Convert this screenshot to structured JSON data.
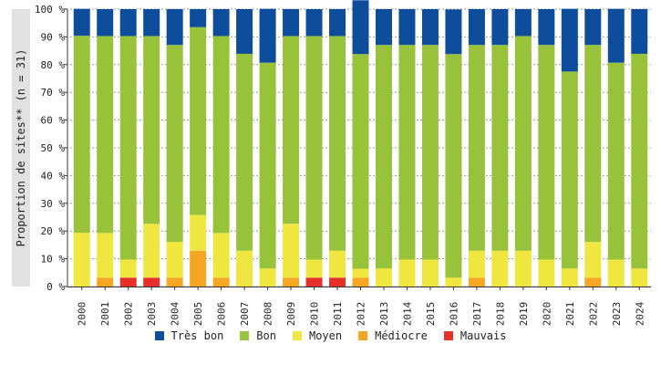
{
  "chart_data": {
    "type": "bar",
    "stacked": true,
    "ylabel": "Proportion de sites** (n = 31)",
    "ylim": [
      0,
      100
    ],
    "yticks": [
      "0 %",
      "10 %",
      "20 %",
      "30 %",
      "40 %",
      "50 %",
      "60 %",
      "70 %",
      "80 %",
      "90 %",
      "100 %"
    ],
    "grid": true,
    "legend_position": "bottom",
    "categories": [
      "2000",
      "2001",
      "2002",
      "2003",
      "2004",
      "2005",
      "2006",
      "2007",
      "2008",
      "2009",
      "2010",
      "2011",
      "2012",
      "2013",
      "2014",
      "2015",
      "2016",
      "2017",
      "2018",
      "2019",
      "2020",
      "2021",
      "2022",
      "2023",
      "2024"
    ],
    "series": [
      {
        "name": "Mauvais",
        "color": "#e8302a",
        "values": [
          0,
          0,
          3.2,
          3.2,
          0,
          0,
          0,
          0,
          0,
          0,
          3.2,
          3.2,
          0,
          0,
          0,
          0,
          0,
          0,
          0,
          0,
          0,
          0,
          0,
          0,
          0
        ]
      },
      {
        "name": "Médiocre",
        "color": "#f5a623",
        "values": [
          0,
          3.2,
          0,
          0,
          3.2,
          12.9,
          3.2,
          0,
          0,
          3.2,
          0,
          0,
          3.2,
          0,
          0,
          0,
          0,
          3.2,
          0,
          0,
          0,
          0,
          3.2,
          0,
          0
        ]
      },
      {
        "name": "Moyen",
        "color": "#f0e640",
        "values": [
          19.4,
          16.1,
          6.5,
          19.4,
          12.9,
          12.9,
          16.1,
          12.9,
          6.5,
          19.4,
          6.5,
          9.7,
          3.2,
          6.5,
          9.7,
          9.7,
          3.2,
          9.7,
          12.9,
          12.9,
          9.7,
          6.5,
          12.9,
          9.7,
          6.5
        ]
      },
      {
        "name": "Bon",
        "color": "#98c23a",
        "values": [
          71.0,
          71.0,
          80.6,
          67.7,
          71.0,
          67.7,
          71.0,
          71.0,
          74.2,
          67.7,
          80.6,
          77.4,
          77.4,
          80.6,
          77.4,
          77.4,
          80.6,
          74.2,
          74.2,
          77.4,
          77.4,
          71.0,
          71.0,
          71.0,
          77.4
        ]
      },
      {
        "name": "Très bon",
        "color": "#0d4d9c",
        "values": [
          9.7,
          9.7,
          9.7,
          9.7,
          12.9,
          6.5,
          9.7,
          16.1,
          19.4,
          9.7,
          9.7,
          9.7,
          19.4,
          12.9,
          12.9,
          12.9,
          16.1,
          12.9,
          12.9,
          9.7,
          12.9,
          22.6,
          12.9,
          19.4,
          16.1
        ]
      }
    ],
    "legend_order": [
      "Très bon",
      "Bon",
      "Moyen",
      "Médiocre",
      "Mauvais"
    ]
  }
}
